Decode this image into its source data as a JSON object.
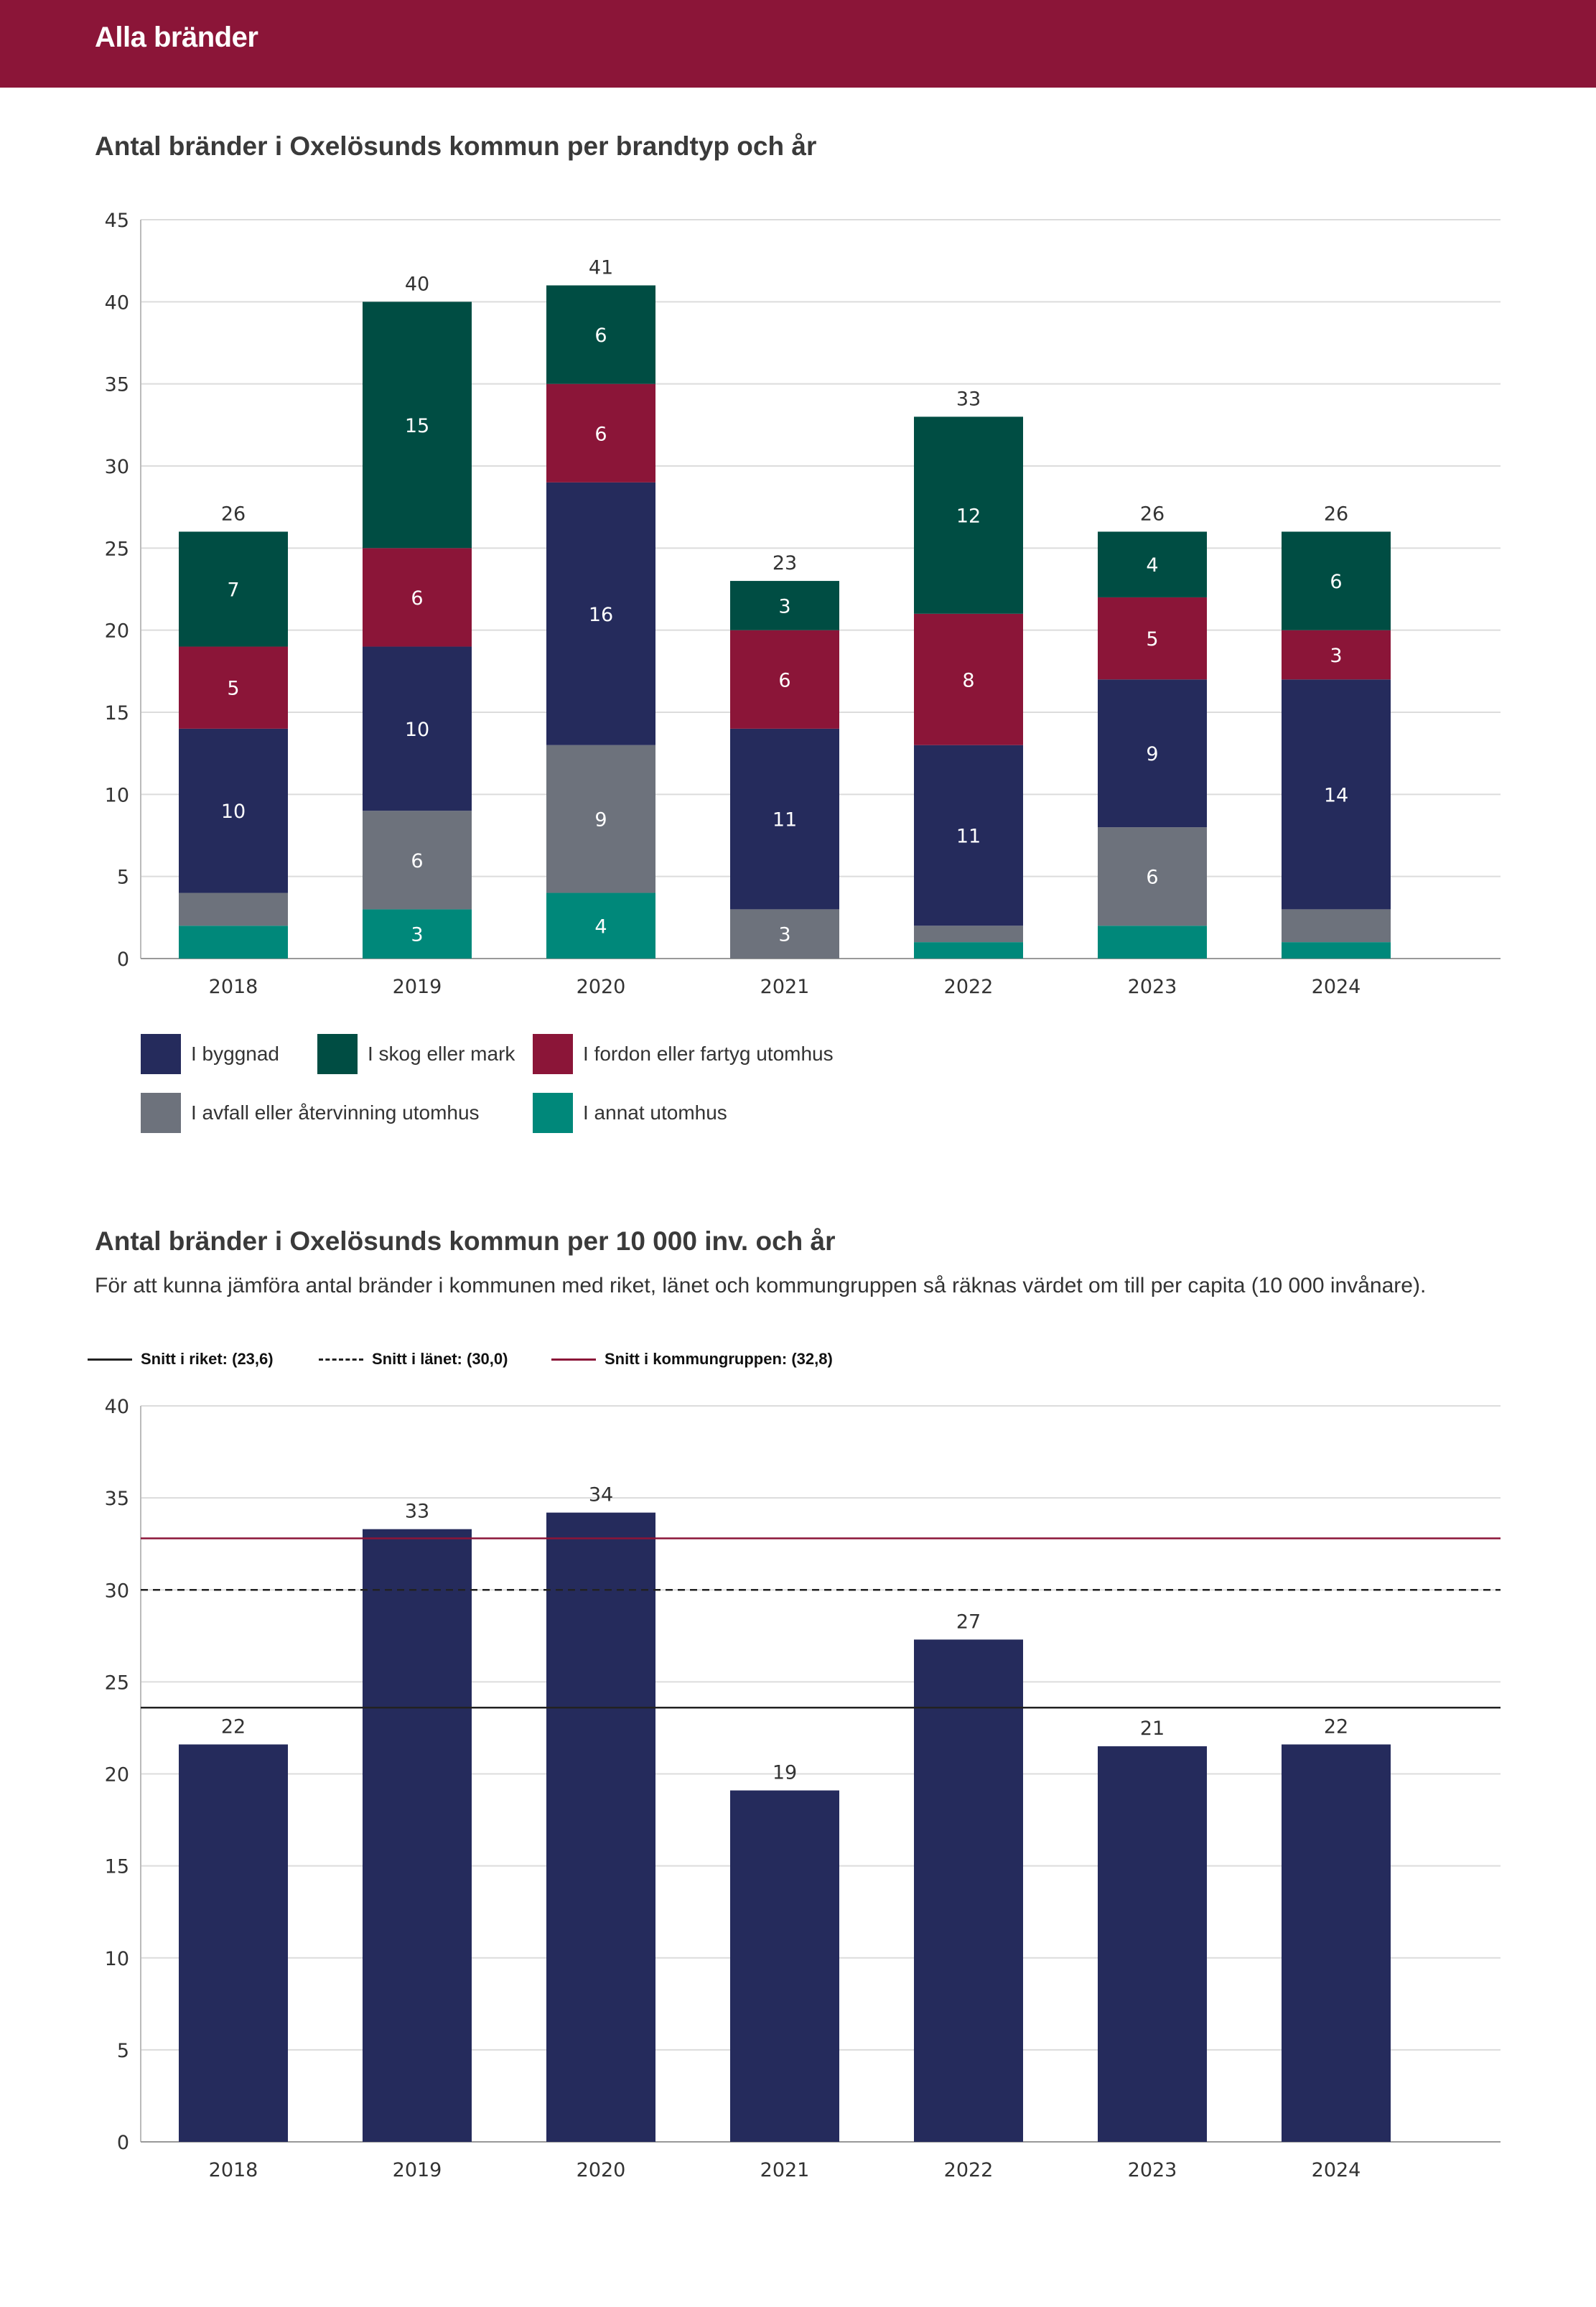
{
  "header": {
    "title": "Alla bränder"
  },
  "chart1": {
    "title": "Antal bränder i Oxelösunds kommun per brandtyp och år",
    "legend": [
      {
        "key": "byggnad",
        "label": "I byggnad",
        "color": "#252b5c"
      },
      {
        "key": "skog",
        "label": "I skog eller mark",
        "color": "#004d43"
      },
      {
        "key": "fordon",
        "label": "I fordon eller fartyg utomhus",
        "color": "#8b1538"
      },
      {
        "key": "avfall",
        "label": "I avfall eller återvinning utomhus",
        "color": "#6d727c"
      },
      {
        "key": "annat",
        "label": "I annat utomhus",
        "color": "#00887a"
      }
    ]
  },
  "chart2": {
    "title": "Antal bränder i Oxelösunds kommun per 10 000 inv. och år",
    "subtitle": "För att kunna jämföra antal bränder i kommunen med riket, länet och kommungruppen så räknas värdet om till per capita (10 000 invånare).",
    "references": [
      {
        "label": "Snitt i riket: (23,6)",
        "value": 23.6,
        "style": "solid",
        "color": "#222222"
      },
      {
        "label": "Snitt i länet: (30,0)",
        "value": 30.0,
        "style": "dashed",
        "color": "#222222"
      },
      {
        "label": "Snitt i kommungruppen: (32,8)",
        "value": 32.8,
        "style": "solid",
        "color": "#8b1538"
      }
    ]
  },
  "chart_data": [
    {
      "type": "bar",
      "stacked": true,
      "title": "Antal bränder i Oxelösunds kommun per brandtyp och år",
      "categories": [
        "2018",
        "2019",
        "2020",
        "2021",
        "2022",
        "2023",
        "2024"
      ],
      "ylim": [
        0,
        45
      ],
      "yticks": [
        0,
        5,
        10,
        15,
        20,
        25,
        30,
        35,
        40,
        45
      ],
      "totals": [
        26,
        40,
        41,
        23,
        33,
        26,
        26
      ],
      "series": [
        {
          "name": "I annat utomhus",
          "color": "#00887a",
          "values": [
            2,
            3,
            4,
            0,
            1,
            2,
            1
          ],
          "labels": [
            "",
            "3",
            "4",
            "",
            "",
            "",
            ""
          ]
        },
        {
          "name": "I avfall eller återvinning utomhus",
          "color": "#6d727c",
          "values": [
            2,
            6,
            9,
            3,
            1,
            6,
            2
          ],
          "labels": [
            "",
            "6",
            "9",
            "3",
            "",
            "6",
            ""
          ]
        },
        {
          "name": "I byggnad",
          "color": "#252b5c",
          "values": [
            10,
            10,
            16,
            11,
            11,
            9,
            14
          ],
          "labels": [
            "10",
            "10",
            "16",
            "11",
            "11",
            "9",
            "14"
          ]
        },
        {
          "name": "I fordon eller fartyg utomhus",
          "color": "#8b1538",
          "values": [
            5,
            6,
            6,
            6,
            8,
            5,
            3
          ],
          "labels": [
            "5",
            "6",
            "6",
            "6",
            "8",
            "5",
            "3"
          ]
        },
        {
          "name": "I skog eller mark",
          "color": "#004d43",
          "values": [
            7,
            15,
            6,
            3,
            12,
            4,
            6
          ],
          "labels": [
            "7",
            "15",
            "6",
            "3",
            "12",
            "4",
            "6"
          ]
        }
      ],
      "grid": true,
      "legend_position": "bottom"
    },
    {
      "type": "bar",
      "title": "Antal bränder i Oxelösunds kommun per 10 000 inv. och år",
      "categories": [
        "2018",
        "2019",
        "2020",
        "2021",
        "2022",
        "2023",
        "2024"
      ],
      "values": [
        21.6,
        33.3,
        34.2,
        19.1,
        27.3,
        21.5,
        21.6
      ],
      "labels": [
        "22",
        "33",
        "34",
        "19",
        "27",
        "21",
        "22"
      ],
      "color": "#252b5c",
      "ylim": [
        0,
        40
      ],
      "yticks": [
        0,
        5,
        10,
        15,
        20,
        25,
        30,
        35,
        40
      ],
      "reference_lines": [
        {
          "name": "Snitt i riket",
          "value": 23.6
        },
        {
          "name": "Snitt i länet",
          "value": 30.0
        },
        {
          "name": "Snitt i kommungruppen",
          "value": 32.8
        }
      ],
      "grid": true,
      "legend_position": "top-left"
    }
  ]
}
